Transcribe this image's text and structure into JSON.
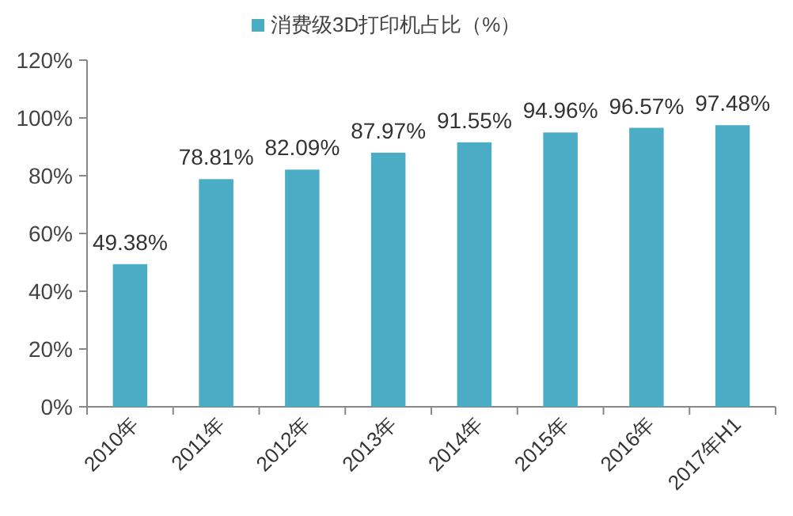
{
  "chart_data": {
    "type": "bar",
    "categories": [
      "2010年",
      "2011年",
      "2012年",
      "2013年",
      "2014年",
      "2015年",
      "2016年",
      "2017年H1"
    ],
    "series": [
      {
        "name": "消费级3D打印机占比（%）",
        "color": "#4bacc6",
        "values": [
          49.38,
          78.81,
          82.09,
          87.97,
          91.55,
          94.96,
          96.57,
          97.48
        ],
        "value_labels": [
          "49.38%",
          "78.81%",
          "82.09%",
          "87.97%",
          "91.55%",
          "94.96%",
          "96.57%",
          "97.48%"
        ]
      }
    ],
    "ylim": [
      0,
      120
    ],
    "yticks": [
      {
        "value": 0,
        "label": "0%"
      },
      {
        "value": 20,
        "label": "20%"
      },
      {
        "value": 40,
        "label": "40%"
      },
      {
        "value": 60,
        "label": "60%"
      },
      {
        "value": 80,
        "label": "80%"
      },
      {
        "value": 100,
        "label": "100%"
      },
      {
        "value": 120,
        "label": "120%"
      }
    ],
    "grid": false,
    "legend": "top"
  }
}
